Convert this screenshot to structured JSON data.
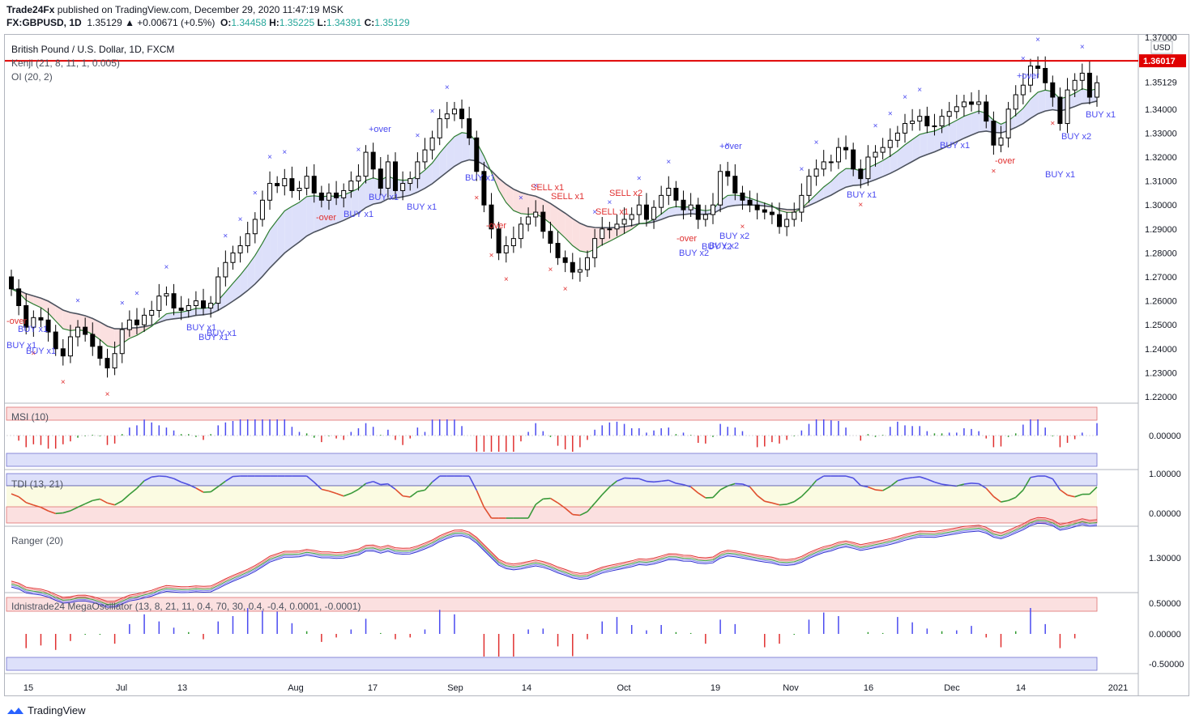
{
  "header": {
    "publisher": "Trade24Fx",
    "published_text": " published on TradingView.com, December 29, 2020 11:47:19 MSK",
    "symbol": "FX:GBPUSD, 1D",
    "change": "1.35129 ▲ +0.00671 (+0.5%)",
    "o_label": "O:",
    "o_val": "1.34458",
    "h_label": "H:",
    "h_val": "1.35225",
    "l_label": "L:",
    "l_val": "1.34391",
    "c_label": "C:",
    "c_val": "1.35129"
  },
  "legends": {
    "main": "British Pound / U.S. Dollar, 1D, FXCM",
    "kenji": "Kenji (21, 8, 11, 1, 0.005)",
    "oi": "OI (20, 2)",
    "msi": "MSI (10)",
    "tdi": "TDI (13, 21)",
    "ranger": "Ranger (20)",
    "mega": "Idnistrade24 MegaOscillator (13, 8, 21, 11, 0.4, 70, 30, 0.4, -0.4, 0.0001, -0.0001)"
  },
  "price_axis": {
    "currency": "USD",
    "labels": [
      "1.37000",
      "1.36000",
      "1.35129",
      "1.34000",
      "1.33000",
      "1.32000",
      "1.31000",
      "1.30000",
      "1.29000",
      "1.28000",
      "1.27000",
      "1.26000",
      "1.25000",
      "1.24000",
      "1.23000",
      "1.22000"
    ],
    "red_line_label": "1.36017",
    "msi_label": "0.00000",
    "tdi_labels": [
      "1.00000",
      "0.00000"
    ],
    "ranger_label": "1.30000",
    "mega_labels": [
      "0.50000",
      "0.00000",
      "-0.50000"
    ]
  },
  "time_axis": [
    "15",
    "Jul",
    "13",
    "Aug",
    "17",
    "Sep",
    "14",
    "Oct",
    "19",
    "Nov",
    "16",
    "Dec",
    "14",
    "2021"
  ],
  "signal_labels": [
    "BUY x1",
    "BUY x1",
    "BUY x1",
    "BUY x1",
    "BUY x1",
    "BUY x1",
    "BUY x1",
    "BUY x1",
    "BUY x2",
    "BUY x2",
    "BUY x2",
    "BUY x2",
    "BUY x1",
    "BUY x1",
    "BUY x1",
    "BUY x2",
    "BUY x1",
    "BUY x1",
    "BUY x1",
    "SELL x1",
    "SELL x1",
    "SELL x1",
    "SELL x2",
    "-over",
    "-over",
    "-over",
    "-over",
    "+over",
    "+over",
    "+over",
    "-over"
  ],
  "footer": {
    "brand": "TradingView"
  },
  "colors": {
    "up_body": "#ffffff",
    "down_body": "#000000",
    "red_line": "#e00000",
    "blue_bar": "#4a4af0",
    "red_bar": "#e03030",
    "green_bar": "#2e9a2e",
    "band_blue": "#dde0fa",
    "band_pink": "#fbe0e0",
    "band_yellow": "#fbfbe2"
  },
  "chart_data": {
    "type": "candlestick",
    "title": "British Pound / U.S. Dollar, 1D, FXCM",
    "ylim": [
      1.215,
      1.372
    ],
    "last_close": 1.35129,
    "horizontal_line": 1.36017,
    "x_ticks": [
      "15",
      "Jul",
      "13",
      "Aug",
      "17",
      "Sep",
      "14",
      "Oct",
      "19",
      "Nov",
      "16",
      "Dec",
      "14",
      "2021"
    ],
    "closes": [
      1.265,
      1.258,
      1.249,
      1.253,
      1.252,
      1.247,
      1.24,
      1.237,
      1.245,
      1.249,
      1.246,
      1.241,
      1.236,
      1.232,
      1.238,
      1.248,
      1.252,
      1.25,
      1.254,
      1.256,
      1.262,
      1.263,
      1.257,
      1.256,
      1.258,
      1.26,
      1.257,
      1.259,
      1.27,
      1.276,
      1.28,
      1.283,
      1.288,
      1.294,
      1.302,
      1.309,
      1.308,
      1.311,
      1.306,
      1.307,
      1.312,
      1.305,
      1.302,
      1.305,
      1.303,
      1.306,
      1.31,
      1.312,
      1.322,
      1.315,
      1.307,
      1.318,
      1.306,
      1.309,
      1.311,
      1.318,
      1.323,
      1.328,
      1.336,
      1.338,
      1.34,
      1.336,
      1.328,
      1.314,
      1.3,
      1.29,
      1.28,
      1.283,
      1.286,
      1.292,
      1.295,
      1.297,
      1.289,
      1.284,
      1.278,
      1.276,
      1.272,
      1.273,
      1.278,
      1.286,
      1.29,
      1.29,
      1.292,
      1.294,
      1.296,
      1.3,
      1.294,
      1.299,
      1.304,
      1.307,
      1.302,
      1.298,
      1.3,
      1.294,
      1.296,
      1.3,
      1.314,
      1.312,
      1.305,
      1.302,
      1.3,
      1.298,
      1.297,
      1.296,
      1.291,
      1.294,
      1.297,
      1.304,
      1.312,
      1.315,
      1.318,
      1.318,
      1.324,
      1.323,
      1.315,
      1.311,
      1.32,
      1.322,
      1.324,
      1.327,
      1.33,
      1.334,
      1.335,
      1.337,
      1.333,
      1.333,
      1.337,
      1.339,
      1.341,
      1.343,
      1.342,
      1.343,
      1.335,
      1.325,
      1.328,
      1.34,
      1.346,
      1.35,
      1.358,
      1.357,
      1.351,
      1.345,
      1.334,
      1.348,
      1.352,
      1.355,
      1.345,
      1.351
    ],
    "opens": [
      1.27,
      1.265,
      1.258,
      1.249,
      1.253,
      1.252,
      1.247,
      1.24,
      1.237,
      1.245,
      1.249,
      1.246,
      1.241,
      1.236,
      1.232,
      1.238,
      1.248,
      1.252,
      1.25,
      1.254,
      1.256,
      1.262,
      1.263,
      1.257,
      1.256,
      1.258,
      1.26,
      1.257,
      1.259,
      1.27,
      1.276,
      1.28,
      1.283,
      1.288,
      1.294,
      1.302,
      1.309,
      1.308,
      1.311,
      1.306,
      1.307,
      1.312,
      1.305,
      1.302,
      1.305,
      1.303,
      1.306,
      1.31,
      1.312,
      1.322,
      1.315,
      1.307,
      1.318,
      1.306,
      1.309,
      1.311,
      1.318,
      1.323,
      1.328,
      1.336,
      1.338,
      1.34,
      1.336,
      1.328,
      1.314,
      1.3,
      1.29,
      1.28,
      1.283,
      1.286,
      1.292,
      1.295,
      1.297,
      1.289,
      1.284,
      1.278,
      1.276,
      1.272,
      1.273,
      1.278,
      1.286,
      1.29,
      1.29,
      1.292,
      1.294,
      1.296,
      1.3,
      1.294,
      1.299,
      1.304,
      1.307,
      1.302,
      1.298,
      1.3,
      1.294,
      1.296,
      1.3,
      1.314,
      1.312,
      1.305,
      1.302,
      1.3,
      1.298,
      1.297,
      1.296,
      1.291,
      1.294,
      1.297,
      1.304,
      1.312,
      1.315,
      1.318,
      1.318,
      1.324,
      1.323,
      1.315,
      1.311,
      1.32,
      1.322,
      1.324,
      1.327,
      1.33,
      1.334,
      1.335,
      1.337,
      1.333,
      1.333,
      1.337,
      1.339,
      1.341,
      1.343,
      1.342,
      1.343,
      1.335,
      1.325,
      1.328,
      1.34,
      1.346,
      1.35,
      1.358,
      1.357,
      1.351,
      1.345,
      1.334,
      1.348,
      1.352,
      1.355,
      1.345
    ]
  }
}
